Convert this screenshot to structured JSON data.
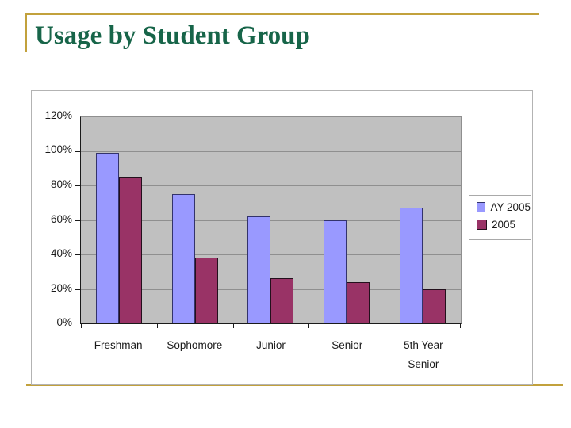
{
  "slide": {
    "title": "Usage by Student Group",
    "title_color": "#176549",
    "accent_color": "#C2A13C",
    "background_color": "#ffffff"
  },
  "chart_data": {
    "type": "bar",
    "title": "",
    "categories": [
      "Freshman",
      "Sophomore",
      "Junior",
      "Senior",
      "5th Year Senior"
    ],
    "series": [
      {
        "name": "AY 2005",
        "color": "#9999FF",
        "border_color": "#33336b",
        "values": [
          99,
          75,
          62,
          60,
          67
        ]
      },
      {
        "name": "2005",
        "color": "#993366",
        "border_color": "#23101c",
        "values": [
          85,
          38,
          26,
          24,
          20
        ]
      }
    ],
    "xlabel": "",
    "ylabel": "",
    "ylim": [
      0,
      120
    ],
    "y_ticks": [
      120,
      100,
      80,
      60,
      40,
      20,
      0
    ],
    "y_tick_labels": [
      "120%",
      "100%",
      "80%",
      "60%",
      "40%",
      "20%",
      "0%"
    ],
    "grid": true,
    "gridline_color": "#8f8f8f",
    "plot_background": "#C0C0C0",
    "legend_position": "right"
  }
}
